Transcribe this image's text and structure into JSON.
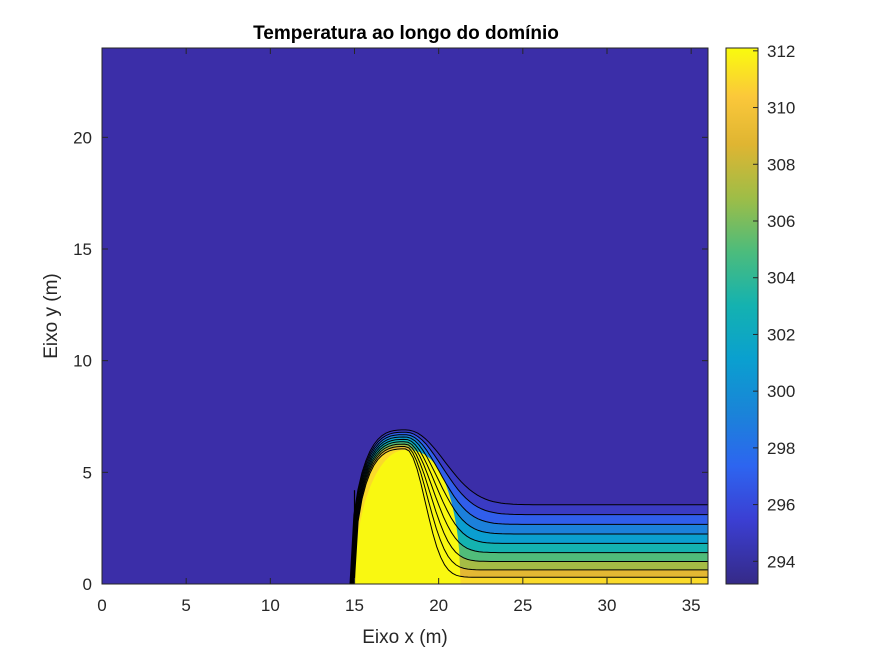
{
  "chart_data": {
    "type": "heatmap",
    "title": "Temperatura ao longo do domínio",
    "xlabel": "Eixo x (m)",
    "ylabel": "Eixo y (m)",
    "xlim": [
      0,
      36
    ],
    "ylim": [
      0,
      24
    ],
    "x_ticks": [
      "0",
      "5",
      "10",
      "15",
      "20",
      "25",
      "30",
      "35"
    ],
    "y_ticks": [
      "0",
      "5",
      "10",
      "15",
      "20"
    ],
    "colorbar": {
      "limits": [
        293.2,
        312.1
      ],
      "ticks": [
        "294",
        "296",
        "298",
        "300",
        "302",
        "304",
        "306",
        "308",
        "310",
        "312"
      ],
      "colormap": "parula"
    },
    "background_temperature": 293.2,
    "heated_region_temperature": 312,
    "heated_region": {
      "x_start": 15,
      "x_end": 21.3,
      "top_y": 6.0,
      "peak_x": 18
    },
    "plume": {
      "outer_contour_y_at_x36": 3.55,
      "inner_contour_y_at_x36": 0.3
    },
    "contour_levels": [
      294,
      296,
      298,
      300,
      302,
      304,
      306,
      308,
      310
    ],
    "grid": false
  }
}
